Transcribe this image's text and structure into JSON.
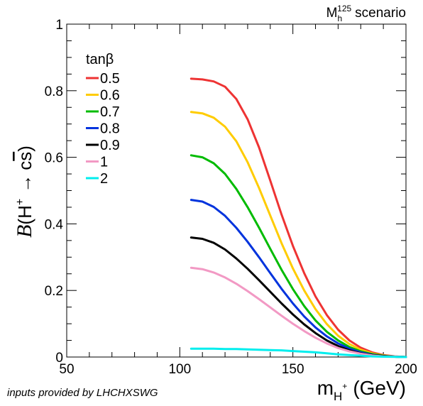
{
  "chart_data": {
    "type": "line",
    "title": "",
    "scenario_label": "M_h^125 scenario",
    "scenario_main": "M",
    "scenario_sub": "h",
    "scenario_sup": "125",
    "scenario_text": "scenario",
    "xlabel": "m_H+ (GeV)",
    "xlabel_main": "m",
    "xlabel_sub": "H",
    "xlabel_sup": "+",
    "xlabel_unit": "(GeV)",
    "ylabel": "B(H+ → cs̄)",
    "ylabel_B": "B",
    "ylabel_open": "(H",
    "ylabel_sup": "+",
    "ylabel_arrow": "→",
    "ylabel_c": "c",
    "ylabel_s": "s",
    "ylabel_close": ")",
    "xlim": [
      50,
      200
    ],
    "ylim": [
      0,
      1
    ],
    "x_ticks": [
      50,
      100,
      150,
      200
    ],
    "x_tick_labels": [
      "50",
      "100",
      "150",
      "200"
    ],
    "y_ticks": [
      0,
      0.2,
      0.4,
      0.6,
      0.8,
      1
    ],
    "y_tick_labels": [
      "0",
      "0.2",
      "0.4",
      "0.6",
      "0.8",
      "1"
    ],
    "grid": false,
    "legend_title": "tanβ",
    "legend_placement": "top-left",
    "footer_note": "inputs provided by LHCHXSWG",
    "x": [
      105,
      110,
      115,
      120,
      125,
      130,
      135,
      140,
      145,
      150,
      155,
      160,
      165,
      170,
      175,
      180,
      185,
      190,
      195,
      200
    ],
    "series": [
      {
        "name": "0.5",
        "color": "#ee3333",
        "values": [
          0.836,
          0.834,
          0.828,
          0.812,
          0.775,
          0.714,
          0.63,
          0.53,
          0.428,
          0.334,
          0.252,
          0.182,
          0.126,
          0.082,
          0.05,
          0.028,
          0.014,
          0.006,
          0.002,
          0.0
        ]
      },
      {
        "name": "0.6",
        "color": "#ffcc00",
        "values": [
          0.736,
          0.732,
          0.719,
          0.692,
          0.648,
          0.585,
          0.508,
          0.425,
          0.342,
          0.266,
          0.2,
          0.144,
          0.099,
          0.064,
          0.039,
          0.022,
          0.011,
          0.005,
          0.001,
          0.0
        ]
      },
      {
        "name": "0.7",
        "color": "#00bb00",
        "values": [
          0.606,
          0.6,
          0.582,
          0.55,
          0.505,
          0.45,
          0.389,
          0.325,
          0.262,
          0.204,
          0.153,
          0.11,
          0.076,
          0.05,
          0.03,
          0.017,
          0.009,
          0.004,
          0.001,
          0.0
        ]
      },
      {
        "name": "0.8",
        "color": "#0033dd",
        "values": [
          0.472,
          0.467,
          0.451,
          0.424,
          0.388,
          0.346,
          0.3,
          0.252,
          0.205,
          0.161,
          0.122,
          0.089,
          0.062,
          0.041,
          0.025,
          0.014,
          0.007,
          0.003,
          0.001,
          0.0
        ]
      },
      {
        "name": "0.9",
        "color": "#000000",
        "values": [
          0.359,
          0.355,
          0.343,
          0.323,
          0.296,
          0.265,
          0.231,
          0.196,
          0.161,
          0.128,
          0.098,
          0.072,
          0.05,
          0.033,
          0.02,
          0.011,
          0.006,
          0.003,
          0.001,
          0.0
        ]
      },
      {
        "name": "1",
        "color": "#f299c4",
        "values": [
          0.268,
          0.264,
          0.254,
          0.239,
          0.22,
          0.198,
          0.174,
          0.149,
          0.124,
          0.1,
          0.078,
          0.058,
          0.041,
          0.027,
          0.017,
          0.01,
          0.005,
          0.002,
          0.001,
          0.0
        ]
      },
      {
        "name": "2",
        "color": "#00eeee",
        "values": [
          0.025,
          0.025,
          0.025,
          0.024,
          0.024,
          0.023,
          0.022,
          0.021,
          0.02,
          0.018,
          0.016,
          0.014,
          0.011,
          0.008,
          0.006,
          0.004,
          0.002,
          0.001,
          0.0005,
          0.0
        ]
      }
    ]
  }
}
